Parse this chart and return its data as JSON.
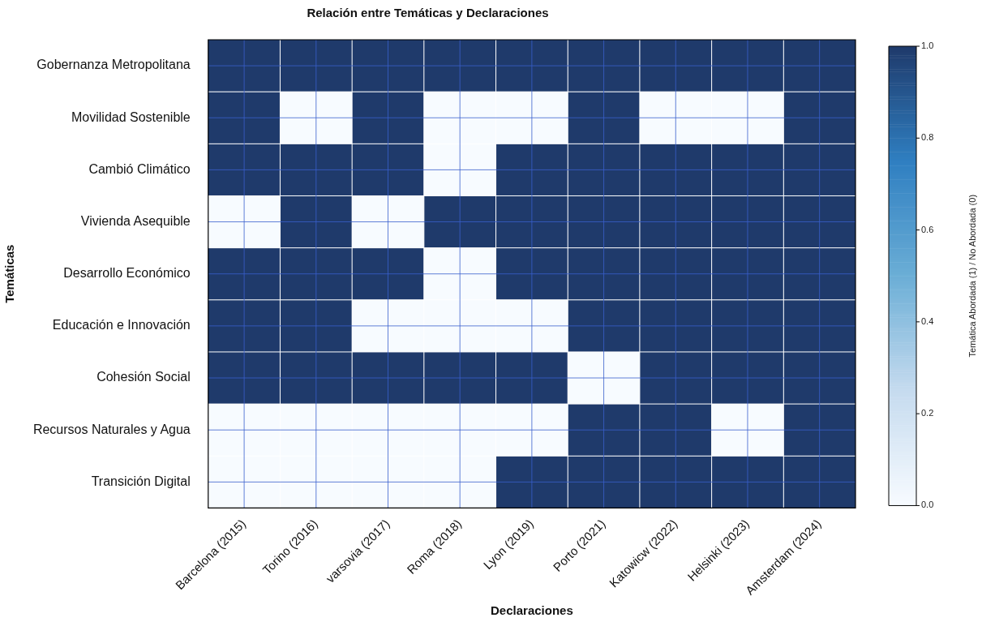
{
  "chart_data": {
    "type": "heatmap",
    "title": "Relación entre Temáticas y Declaraciones",
    "xlabel": "Declaraciones",
    "ylabel": "Temáticas",
    "clabel": "Temática Abordada (1) / No Abordada (0)",
    "categories": [
      "Barcelona (2015)",
      "Torino (2016)",
      "varsovia (2017)",
      "Roma (2018)",
      "Lyon (2019)",
      "Porto (2021)",
      "Katowicw (2022)",
      "Helsinki (2023)",
      "Amsterdam (2024)"
    ],
    "y_categories": [
      "Gobernanza Metropolitana",
      "Movilidad Sostenible",
      "Cambió Climático",
      "Vivienda Asequible",
      "Desarrollo Económico",
      "Educación e Innovación",
      "Cohesión Social",
      "Recursos Naturales y Agua",
      "Transición Digital"
    ],
    "cells": [
      [
        1,
        1,
        1,
        1,
        1,
        1,
        1,
        1,
        1
      ],
      [
        1,
        0,
        1,
        0,
        0,
        1,
        0,
        0,
        1
      ],
      [
        1,
        1,
        1,
        0,
        1,
        1,
        1,
        1,
        1
      ],
      [
        0,
        1,
        0,
        1,
        1,
        1,
        1,
        1,
        1
      ],
      [
        1,
        1,
        1,
        0,
        1,
        1,
        1,
        1,
        1
      ],
      [
        1,
        1,
        0,
        0,
        0,
        1,
        1,
        1,
        1
      ],
      [
        1,
        1,
        1,
        1,
        1,
        0,
        1,
        1,
        1
      ],
      [
        0,
        0,
        0,
        0,
        0,
        1,
        1,
        0,
        1
      ],
      [
        0,
        0,
        0,
        0,
        1,
        1,
        1,
        1,
        1
      ]
    ],
    "clim": [
      0,
      1
    ],
    "cticks": [
      {
        "value": 0,
        "label": "0.0"
      },
      {
        "value": 0.2,
        "label": "0.2"
      },
      {
        "value": 0.4,
        "label": "0.4"
      },
      {
        "value": 0.6,
        "label": "0.6"
      },
      {
        "value": 0.8,
        "label": "0.8"
      },
      {
        "value": 1,
        "label": "1.0"
      }
    ],
    "grid": true
  }
}
